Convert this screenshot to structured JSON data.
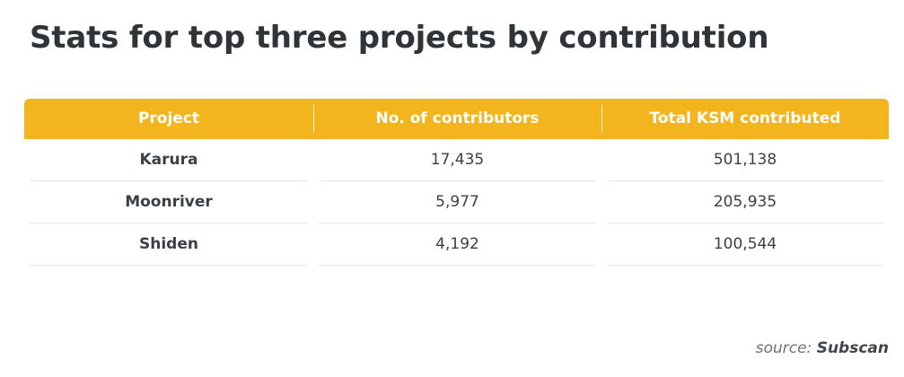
{
  "title": "Stats for top three projects by contribution",
  "table": {
    "headers": [
      "Project",
      "No. of contributors",
      "Total KSM contributed"
    ],
    "rows": [
      [
        "Karura",
        "17,435",
        "501,138"
      ],
      [
        "Moonriver",
        "5,977",
        "205,935"
      ],
      [
        "Shiden",
        "4,192",
        "100,544"
      ]
    ]
  },
  "source": {
    "prefix": "source:",
    "name": "Subscan"
  },
  "colors": {
    "header_background": "#f2b51e",
    "header_text": "#ffffff",
    "title_text": "#2f3438"
  }
}
